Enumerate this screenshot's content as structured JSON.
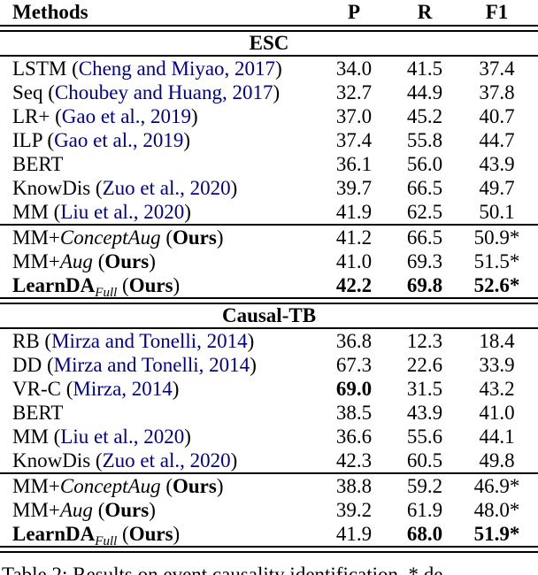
{
  "header": {
    "methods": "Methods",
    "p": "P",
    "r": "R",
    "f1": "F1"
  },
  "colors": {
    "citation_link": "#00008b",
    "text": "#000000",
    "rule": "#000000"
  },
  "sections": [
    {
      "name": "ESC",
      "baseline_rows": [
        {
          "method": [
            {
              "t": "LSTM (",
              "s": "r"
            },
            {
              "t": "Cheng and Miyao, 2017",
              "s": "c"
            },
            {
              "t": ")",
              "s": "r"
            }
          ],
          "p": "34.0",
          "r": "41.5",
          "f1": "37.4",
          "bold": []
        },
        {
          "method": [
            {
              "t": "Seq (",
              "s": "r"
            },
            {
              "t": "Choubey and Huang, 2017",
              "s": "c"
            },
            {
              "t": ")",
              "s": "r"
            }
          ],
          "p": "32.7",
          "r": "44.9",
          "f1": "37.8",
          "bold": []
        },
        {
          "method": [
            {
              "t": "LR+ (",
              "s": "r"
            },
            {
              "t": "Gao et al., 2019",
              "s": "c"
            },
            {
              "t": ")",
              "s": "r"
            }
          ],
          "p": "37.0",
          "r": "45.2",
          "f1": "40.7",
          "bold": []
        },
        {
          "method": [
            {
              "t": "ILP (",
              "s": "r"
            },
            {
              "t": "Gao et al., 2019",
              "s": "c"
            },
            {
              "t": ")",
              "s": "r"
            }
          ],
          "p": "37.4",
          "r": "55.8",
          "f1": "44.7",
          "bold": []
        },
        {
          "method": [
            {
              "t": "BERT",
              "s": "r"
            }
          ],
          "p": "36.1",
          "r": "56.0",
          "f1": "43.9",
          "bold": []
        },
        {
          "method": [
            {
              "t": "KnowDis (",
              "s": "r"
            },
            {
              "t": "Zuo et al., 2020",
              "s": "c"
            },
            {
              "t": ")",
              "s": "r"
            }
          ],
          "p": "39.7",
          "r": "66.5",
          "f1": "49.7",
          "bold": []
        },
        {
          "method": [
            {
              "t": "MM (",
              "s": "r"
            },
            {
              "t": "Liu et al., 2020",
              "s": "c"
            },
            {
              "t": ")",
              "s": "r"
            }
          ],
          "p": "41.9",
          "r": "62.5",
          "f1": "50.1",
          "bold": []
        }
      ],
      "ours_rows": [
        {
          "method": [
            {
              "t": "MM+",
              "s": "r"
            },
            {
              "t": "ConceptAug",
              "s": "i"
            },
            {
              "t": " (",
              "s": "r"
            },
            {
              "t": "Ours",
              "s": "b"
            },
            {
              "t": ")",
              "s": "r"
            }
          ],
          "p": "41.2",
          "r": "66.5",
          "f1": "50.9*",
          "bold": []
        },
        {
          "method": [
            {
              "t": "MM+",
              "s": "r"
            },
            {
              "t": "Aug",
              "s": "i"
            },
            {
              "t": " (",
              "s": "r"
            },
            {
              "t": "Ours",
              "s": "b"
            },
            {
              "t": ")",
              "s": "r"
            }
          ],
          "p": "41.0",
          "r": "69.3",
          "f1": "51.5*",
          "bold": []
        },
        {
          "method": [
            {
              "t": "LearnDA",
              "s": "b"
            },
            {
              "t": "Full",
              "s": "sub"
            },
            {
              "t": " (",
              "s": "r"
            },
            {
              "t": "Ours",
              "s": "b"
            },
            {
              "t": ")",
              "s": "r"
            }
          ],
          "p": "42.2",
          "r": "69.8",
          "f1": "52.6*",
          "bold": [
            "p",
            "r",
            "f1"
          ]
        }
      ]
    },
    {
      "name": "Causal-TB",
      "baseline_rows": [
        {
          "method": [
            {
              "t": "RB (",
              "s": "r"
            },
            {
              "t": "Mirza and Tonelli, 2014",
              "s": "c"
            },
            {
              "t": ")",
              "s": "r"
            }
          ],
          "p": "36.8",
          "r": "12.3",
          "f1": "18.4",
          "bold": []
        },
        {
          "method": [
            {
              "t": "DD (",
              "s": "r"
            },
            {
              "t": "Mirza and Tonelli, 2014",
              "s": "c"
            },
            {
              "t": ")",
              "s": "r"
            }
          ],
          "p": "67.3",
          "r": "22.6",
          "f1": "33.9",
          "bold": []
        },
        {
          "method": [
            {
              "t": "VR-C (",
              "s": "r"
            },
            {
              "t": "Mirza, 2014",
              "s": "c"
            },
            {
              "t": ")",
              "s": "r"
            }
          ],
          "p": "69.0",
          "r": "31.5",
          "f1": "43.2",
          "bold": [
            "p"
          ]
        },
        {
          "method": [
            {
              "t": "BERT",
              "s": "r"
            }
          ],
          "p": "38.5",
          "r": "43.9",
          "f1": "41.0",
          "bold": []
        },
        {
          "method": [
            {
              "t": "MM (",
              "s": "r"
            },
            {
              "t": "Liu et al., 2020",
              "s": "c"
            },
            {
              "t": ")",
              "s": "r"
            }
          ],
          "p": "36.6",
          "r": "55.6",
          "f1": "44.1",
          "bold": []
        },
        {
          "method": [
            {
              "t": "KnowDis (",
              "s": "r"
            },
            {
              "t": "Zuo et al., 2020",
              "s": "c"
            },
            {
              "t": ")",
              "s": "r"
            }
          ],
          "p": "42.3",
          "r": "60.5",
          "f1": "49.8",
          "bold": []
        }
      ],
      "ours_rows": [
        {
          "method": [
            {
              "t": "MM+",
              "s": "r"
            },
            {
              "t": "ConceptAug",
              "s": "i"
            },
            {
              "t": " (",
              "s": "r"
            },
            {
              "t": "Ours",
              "s": "b"
            },
            {
              "t": ")",
              "s": "r"
            }
          ],
          "p": "38.8",
          "r": "59.2",
          "f1": "46.9*",
          "bold": []
        },
        {
          "method": [
            {
              "t": "MM+",
              "s": "r"
            },
            {
              "t": "Aug",
              "s": "i"
            },
            {
              "t": " (",
              "s": "r"
            },
            {
              "t": "Ours",
              "s": "b"
            },
            {
              "t": ")",
              "s": "r"
            }
          ],
          "p": "39.2",
          "r": "61.9",
          "f1": "48.0*",
          "bold": []
        },
        {
          "method": [
            {
              "t": "LearnDA",
              "s": "b"
            },
            {
              "t": "Full",
              "s": "sub"
            },
            {
              "t": " (",
              "s": "r"
            },
            {
              "t": "Ours",
              "s": "b"
            },
            {
              "t": ")",
              "s": "r"
            }
          ],
          "p": "41.9",
          "r": "68.0",
          "f1": "51.9*",
          "bold": [
            "r",
            "f1"
          ]
        }
      ]
    }
  ],
  "caption": "Table 2: Results on event causality identification. * de"
}
